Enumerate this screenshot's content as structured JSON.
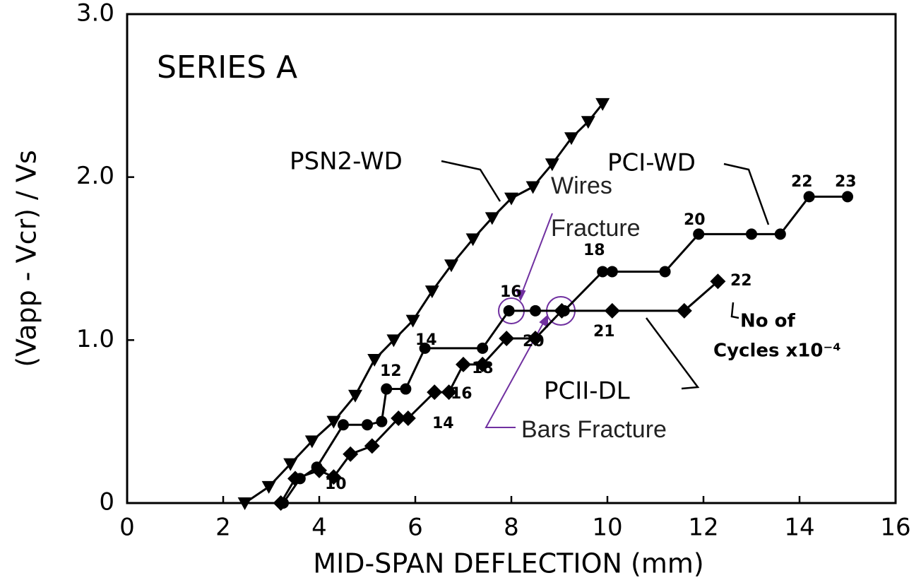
{
  "chart_data": {
    "type": "line",
    "x_label": "MID-SPAN DEFLECTION (mm)",
    "y_label": "(Vapp - Vcr) / Vs",
    "xlim": [
      0,
      16
    ],
    "ylim": [
      0,
      3
    ],
    "xticks": [
      0,
      2,
      4,
      6,
      8,
      10,
      12,
      14,
      16
    ],
    "yticks": [
      0,
      {
        "value": 1,
        "label": "1.0"
      },
      {
        "value": 2,
        "label": "2.0"
      },
      {
        "value": 3,
        "label": "3.0"
      }
    ],
    "series": [
      {
        "name": "PSN2-WD",
        "color": "#000000",
        "marker": "triangle-down",
        "x": [
          2.45,
          2.95,
          3.4,
          3.85,
          4.3,
          4.75,
          5.15,
          5.55,
          5.95,
          6.35,
          6.75,
          7.2,
          7.6,
          8.0,
          8.45,
          8.85,
          9.25,
          9.6,
          9.9
        ],
        "values": [
          0,
          0.1,
          0.24,
          0.38,
          0.5,
          0.66,
          0.88,
          1.0,
          1.12,
          1.3,
          1.46,
          1.62,
          1.75,
          1.87,
          1.94,
          2.08,
          2.24,
          2.34,
          2.45
        ]
      },
      {
        "name": "PCI-WD",
        "color": "#000000",
        "marker": "circle",
        "x": [
          3.25,
          3.6,
          3.95,
          4.5,
          5.0,
          5.3,
          5.4,
          5.8,
          6.2,
          7.4,
          7.95,
          8.5,
          9.1,
          9.9,
          10.1,
          11.2,
          11.9,
          13.0,
          13.6,
          14.2,
          15.0
        ],
        "values": [
          0,
          0.15,
          0.22,
          0.48,
          0.48,
          0.5,
          0.7,
          0.7,
          0.95,
          0.95,
          1.18,
          1.18,
          1.18,
          1.42,
          1.42,
          1.42,
          1.65,
          1.65,
          1.65,
          1.88,
          1.88
        ]
      },
      {
        "name": "PCII-DL",
        "color": "#000000",
        "marker": "diamond",
        "x": [
          3.2,
          3.5,
          4.0,
          4.3,
          4.65,
          5.1,
          5.65,
          5.85,
          6.4,
          6.7,
          7.0,
          7.4,
          7.9,
          8.5,
          9.05,
          10.1,
          11.6,
          12.3
        ],
        "values": [
          0,
          0.15,
          0.2,
          0.16,
          0.3,
          0.35,
          0.52,
          0.52,
          0.68,
          0.68,
          0.85,
          0.85,
          1.01,
          1.01,
          1.18,
          1.18,
          1.18,
          1.36
        ]
      }
    ],
    "annotations": [
      "SERIES A",
      "PSN2-WD",
      "PCI-WD",
      "PCII-DL",
      "Wires",
      "Fracture",
      "Bars Fracture",
      "No of",
      "Cycles x10⁻⁴",
      "10",
      "12",
      "14",
      "16",
      "18",
      "20",
      "22",
      "23",
      "14",
      "16",
      "18",
      "20",
      "21",
      "22"
    ]
  }
}
